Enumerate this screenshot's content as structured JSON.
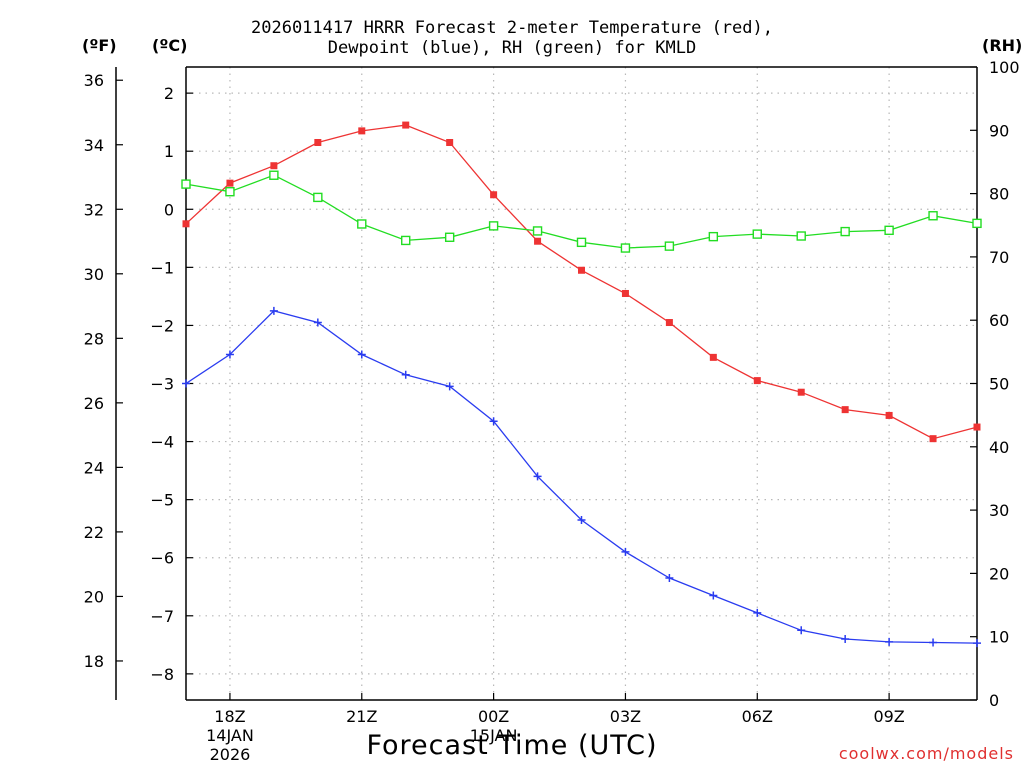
{
  "title": {
    "line1": "2026011417 HRRR Forecast 2-meter Temperature (red),",
    "line2": "Dewpoint (blue), RH (green) for KMLD"
  },
  "units": {
    "fahrenheit": "(ºF)",
    "celsius": "(ºC)",
    "rh": "(RH)"
  },
  "xlabel": "Forecast Time (UTC)",
  "watermark": "coolwx.com/models",
  "colors": {
    "temperature": "#ee3333",
    "dewpoint": "#2a3cf0",
    "rh": "#22dd22",
    "grid": "#b8b8b8"
  },
  "chart_data": {
    "type": "line",
    "x": [
      17,
      18,
      19,
      20,
      21,
      22,
      23,
      24,
      25,
      26,
      27,
      28,
      29,
      30,
      31,
      32,
      33,
      34,
      35
    ],
    "x_unit": "hours UTC since 00Z 14 Jan 2026",
    "xlim": [
      17,
      35
    ],
    "xticks": [
      {
        "x": 18,
        "label": "18Z",
        "sub": [
          "14JAN",
          "2026"
        ]
      },
      {
        "x": 21,
        "label": "21Z",
        "sub": []
      },
      {
        "x": 24,
        "label": "00Z",
        "sub": [
          "15JAN"
        ]
      },
      {
        "x": 27,
        "label": "03Z",
        "sub": []
      },
      {
        "x": 30,
        "label": "06Z",
        "sub": []
      },
      {
        "x": 33,
        "label": "09Z",
        "sub": []
      }
    ],
    "y_left_celsius": {
      "label": "(ºC)",
      "lim": [
        -8.45,
        2.45
      ],
      "ticks": [
        2,
        1,
        0,
        -1,
        -2,
        -3,
        -4,
        -5,
        -6,
        -7,
        -8
      ],
      "tick_labels": [
        "2",
        "1",
        "0",
        "−1",
        "−2",
        "−3",
        "−4",
        "−5",
        "−6",
        "−7",
        "−8"
      ]
    },
    "y_left_fahrenheit": {
      "label": "(ºF)",
      "ticks": [
        36,
        34,
        32,
        30,
        28,
        26,
        24,
        22,
        20,
        18
      ],
      "tick_labels": [
        "36",
        "34",
        "32",
        "30",
        "28",
        "26",
        "24",
        "22",
        "20",
        "18"
      ]
    },
    "y_right_rh": {
      "label": "(RH)",
      "lim": [
        0,
        100
      ],
      "ticks": [
        100,
        90,
        80,
        70,
        60,
        50,
        40,
        30,
        20,
        10,
        0
      ],
      "tick_labels": [
        "100",
        "90",
        "80",
        "70",
        "60",
        "50",
        "40",
        "30",
        "20",
        "10",
        "0"
      ]
    },
    "series": [
      {
        "name": "Temperature",
        "axis": "celsius",
        "marker": "filled-square",
        "color": "#ee3333",
        "values": [
          -0.25,
          0.45,
          0.75,
          1.15,
          1.35,
          1.45,
          1.15,
          0.25,
          -0.55,
          -1.05,
          -1.45,
          -1.95,
          -2.55,
          -2.95,
          -3.15,
          -3.45,
          -3.55,
          -3.95,
          -3.75
        ]
      },
      {
        "name": "Dewpoint",
        "axis": "celsius",
        "marker": "plus",
        "color": "#2a3cf0",
        "values": [
          -3.0,
          -2.5,
          -1.75,
          -1.95,
          -2.5,
          -2.85,
          -3.05,
          -3.65,
          -4.6,
          -5.35,
          -5.9,
          -6.35,
          -6.65,
          -6.95,
          -7.25,
          -7.4,
          -7.45,
          -7.46,
          -7.47
        ]
      },
      {
        "name": "RH",
        "axis": "rh",
        "marker": "open-square",
        "color": "#22dd22",
        "values": [
          81.5,
          80.3,
          82.9,
          79.4,
          75.2,
          72.6,
          73.1,
          74.9,
          74.1,
          72.3,
          71.4,
          71.7,
          73.2,
          73.6,
          73.3,
          74.0,
          74.2,
          76.5,
          75.3
        ]
      }
    ]
  }
}
